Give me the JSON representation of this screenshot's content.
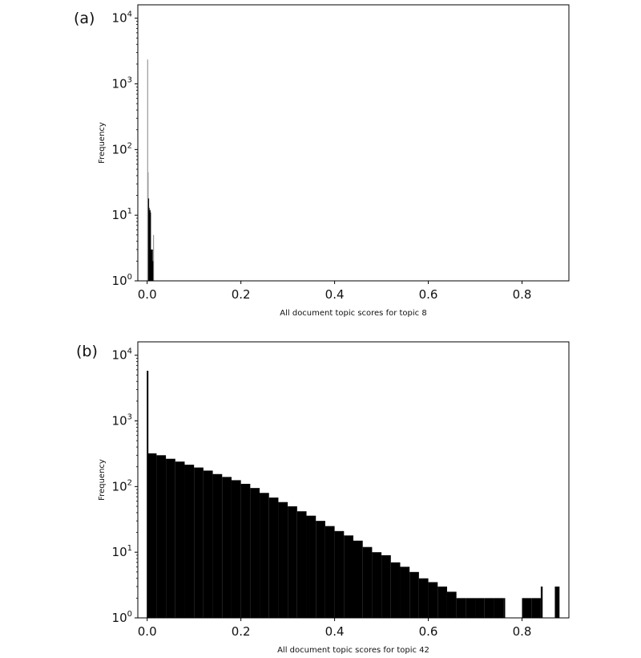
{
  "chart_data": [
    {
      "type": "bar",
      "panel_label": "(a)",
      "xlabel": "All document topic scores for topic 8",
      "ylabel": "Frequency",
      "yscale": "log",
      "xlim": [
        -0.02,
        0.9
      ],
      "ylim": [
        1,
        16000
      ],
      "x_ticks": [
        "0.0",
        "0.2",
        "0.4",
        "0.6",
        "0.8"
      ],
      "y_ticks": [
        {
          "base": "10",
          "exp": "0"
        },
        {
          "base": "10",
          "exp": "1"
        },
        {
          "base": "10",
          "exp": "2"
        },
        {
          "base": "10",
          "exp": "3"
        },
        {
          "base": "10",
          "exp": "4"
        }
      ],
      "bar_width": 0.00088,
      "series": [
        {
          "color": "#999999",
          "x": [
            0.0,
            0.001,
            0.0125
          ],
          "values": [
            2350,
            45,
            5
          ]
        },
        {
          "color": "#000000",
          "x": [
            0.002,
            0.003,
            0.004,
            0.005,
            0.006,
            0.007,
            0.008,
            0.009,
            0.01,
            0.011
          ],
          "values": [
            18,
            13,
            11,
            12,
            11,
            3,
            3,
            2,
            3,
            2
          ]
        }
      ]
    },
    {
      "type": "bar",
      "panel_label": "(b)",
      "xlabel": "All document topic scores for topic 42",
      "ylabel": "Frequency",
      "yscale": "log",
      "xlim": [
        -0.02,
        0.9
      ],
      "ylim": [
        1,
        16000
      ],
      "x_ticks": [
        "0.0",
        "0.2",
        "0.4",
        "0.6",
        "0.8"
      ],
      "y_ticks": [
        {
          "base": "10",
          "exp": "0"
        },
        {
          "base": "10",
          "exp": "1"
        },
        {
          "base": "10",
          "exp": "2"
        },
        {
          "base": "10",
          "exp": "3"
        },
        {
          "base": "10",
          "exp": "4"
        }
      ],
      "spike": {
        "x": 0.0,
        "value": 5800
      },
      "bins": [
        {
          "x": 0.0,
          "value": 320
        },
        {
          "x": 0.02,
          "value": 300
        },
        {
          "x": 0.04,
          "value": 265
        },
        {
          "x": 0.06,
          "value": 240
        },
        {
          "x": 0.08,
          "value": 215
        },
        {
          "x": 0.1,
          "value": 195
        },
        {
          "x": 0.12,
          "value": 175
        },
        {
          "x": 0.14,
          "value": 155
        },
        {
          "x": 0.16,
          "value": 140
        },
        {
          "x": 0.18,
          "value": 125
        },
        {
          "x": 0.2,
          "value": 110
        },
        {
          "x": 0.22,
          "value": 95
        },
        {
          "x": 0.24,
          "value": 80
        },
        {
          "x": 0.26,
          "value": 68
        },
        {
          "x": 0.28,
          "value": 58
        },
        {
          "x": 0.3,
          "value": 50
        },
        {
          "x": 0.32,
          "value": 42
        },
        {
          "x": 0.34,
          "value": 36
        },
        {
          "x": 0.36,
          "value": 30
        },
        {
          "x": 0.38,
          "value": 25
        },
        {
          "x": 0.4,
          "value": 21
        },
        {
          "x": 0.42,
          "value": 18
        },
        {
          "x": 0.44,
          "value": 15
        },
        {
          "x": 0.46,
          "value": 12
        },
        {
          "x": 0.48,
          "value": 10
        },
        {
          "x": 0.5,
          "value": 9
        },
        {
          "x": 0.52,
          "value": 7
        },
        {
          "x": 0.54,
          "value": 6
        },
        {
          "x": 0.56,
          "value": 5
        },
        {
          "x": 0.58,
          "value": 4
        },
        {
          "x": 0.6,
          "value": 3.5
        },
        {
          "x": 0.62,
          "value": 3
        },
        {
          "x": 0.64,
          "value": 2.5
        },
        {
          "x": 0.66,
          "value": 2
        },
        {
          "x": 0.68,
          "value": 2
        },
        {
          "x": 0.7,
          "value": 2
        },
        {
          "x": 0.72,
          "value": 2
        },
        {
          "x": 0.74,
          "value": 2
        },
        {
          "x": 0.76,
          "value": 2
        },
        {
          "x": 0.8,
          "value": 2
        },
        {
          "x": 0.82,
          "value": 2
        },
        {
          "x": 0.84,
          "value": 3
        },
        {
          "x": 0.87,
          "value": 3
        }
      ]
    }
  ]
}
